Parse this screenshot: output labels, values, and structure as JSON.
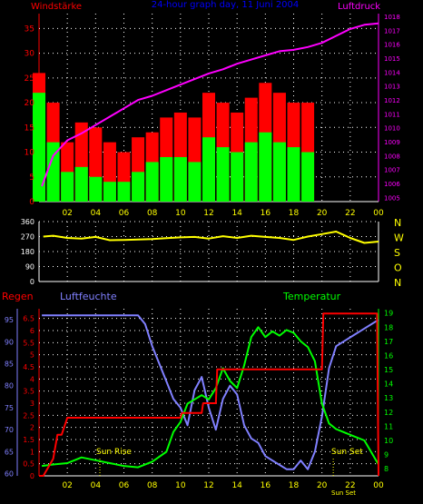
{
  "labels": {
    "wind_title": "Windstärke",
    "header": "24-hour graph day, 11 Juni 2004",
    "pressure_title": "Luftdruck",
    "rain_title": "Regen",
    "humidity_title": "Luftfeuchte",
    "temp_title": "Temperatur",
    "sunrise": "Sun Rise",
    "sunset": "Sun Set",
    "sunset_sub": "Sun Set"
  },
  "colors": {
    "wind_gust": "#ff0000",
    "wind_avg": "#00ff00",
    "pressure": "#ff00ff",
    "direction": "#ffff00",
    "rain": "#ff0000",
    "humidity": "#8080ff",
    "temperature": "#00ff00",
    "grid": "#ffffff",
    "axis_red": "#ff0000",
    "axis_magenta": "#ff00ff",
    "axis_yellow": "#ffff00",
    "axis_blue": "#8080ff",
    "axis_green": "#00ff00"
  },
  "chart_data": [
    {
      "type": "line",
      "id": "wind_pressure",
      "title": "24-hour graph day, 11 Juni 2004",
      "x_ticks": [
        "02",
        "04",
        "06",
        "08",
        "10",
        "12",
        "14",
        "16",
        "18",
        "20",
        "22",
        "00"
      ],
      "xlim": [
        0,
        24
      ],
      "y_left_label": "Windstärke",
      "y_left_ticks": [
        "0",
        "5",
        "10",
        "15",
        "20",
        "25",
        "30",
        "35"
      ],
      "y_left_lim": [
        0,
        38
      ],
      "y_right_label": "Luftdruck",
      "y_right_ticks": [
        "1005",
        "1006",
        "1007",
        "1008",
        "1009",
        "1010",
        "1011",
        "1012",
        "1013",
        "1014",
        "1015",
        "1016",
        "1017",
        "1018"
      ],
      "y_right_lim": [
        1004.7,
        1018.2
      ],
      "grid": true,
      "series": [
        {
          "name": "Windstärke (gust)",
          "axis": "left",
          "style": "bars",
          "x": [
            0,
            1,
            2,
            3,
            4,
            5,
            6,
            7,
            8,
            9,
            10,
            11,
            12,
            13,
            14,
            15,
            16,
            17,
            18,
            19,
            20,
            21,
            22,
            23,
            24
          ],
          "y": [
            26,
            20,
            12,
            16,
            15,
            12,
            10,
            13,
            14,
            17,
            18,
            17,
            22,
            20,
            18,
            21,
            24,
            22,
            20,
            20,
            0,
            0,
            0,
            0,
            0
          ]
        },
        {
          "name": "Windstärke (avg)",
          "axis": "left",
          "style": "bars",
          "x": [
            0,
            1,
            2,
            3,
            4,
            5,
            6,
            7,
            8,
            9,
            10,
            11,
            12,
            13,
            14,
            15,
            16,
            17,
            18,
            19,
            20,
            21,
            22,
            23,
            24
          ],
          "y": [
            22,
            12,
            6,
            7,
            5,
            4,
            4,
            6,
            8,
            9,
            9,
            8,
            13,
            11,
            10,
            12,
            14,
            12,
            11,
            10,
            0,
            0,
            0,
            0,
            0
          ]
        },
        {
          "name": "Luftdruck",
          "axis": "right",
          "x": [
            0.2,
            1,
            2,
            3,
            4,
            5,
            6,
            7,
            8,
            9,
            10,
            11,
            12,
            13,
            14,
            15,
            16,
            17,
            18,
            19,
            20,
            21,
            22,
            23,
            24
          ],
          "y": [
            1005.8,
            1008.0,
            1009.1,
            1009.6,
            1010.2,
            1010.8,
            1011.4,
            1012.0,
            1012.3,
            1012.7,
            1013.1,
            1013.5,
            1013.9,
            1014.2,
            1014.6,
            1014.9,
            1015.2,
            1015.5,
            1015.6,
            1015.8,
            1016.1,
            1016.6,
            1017.1,
            1017.4,
            1017.5
          ]
        }
      ]
    },
    {
      "type": "line",
      "id": "wind_direction",
      "xlim": [
        0,
        24
      ],
      "y_left_ticks": [
        "0",
        "90",
        "180",
        "270",
        "360"
      ],
      "y_left_lim": [
        0,
        360
      ],
      "y_right_labels": [
        "N",
        "W",
        "S",
        "O",
        "N"
      ],
      "grid": true,
      "series": [
        {
          "name": "Windrichtung",
          "axis": "left",
          "x": [
            0.3,
            1,
            2,
            3,
            4,
            5,
            6,
            7,
            8,
            9,
            10,
            11,
            12,
            13,
            14,
            15,
            16,
            17,
            18,
            19,
            20,
            21,
            22,
            23,
            24
          ],
          "y": [
            270,
            275,
            262,
            258,
            268,
            248,
            250,
            252,
            255,
            260,
            265,
            268,
            258,
            272,
            262,
            275,
            268,
            262,
            250,
            270,
            285,
            300,
            262,
            232,
            240
          ]
        }
      ]
    },
    {
      "type": "line",
      "id": "rain_humidity_temperature",
      "x_ticks": [
        "02",
        "04",
        "06",
        "08",
        "10",
        "12",
        "14",
        "16",
        "18",
        "20",
        "22",
        "00"
      ],
      "xlim": [
        0,
        24
      ],
      "y_rain_label": "Regen",
      "y_rain_ticks": [
        "0",
        "0.5",
        "1",
        "1.5",
        "2",
        "2.5",
        "3",
        "3.5",
        "4",
        "4.5",
        "5",
        "5.5",
        "6",
        "6.5"
      ],
      "y_rain_lim": [
        0,
        6.9
      ],
      "y_humidity_label": "Luftfeuchte",
      "y_humidity_ticks": [
        "60",
        "65",
        "70",
        "75",
        "80",
        "85",
        "90",
        "95"
      ],
      "y_humidity_lim": [
        59.5,
        97.5
      ],
      "y_temp_label": "Temperatur",
      "y_temp_ticks": [
        "8",
        "9",
        "10",
        "11",
        "12",
        "13",
        "14",
        "15",
        "16",
        "17",
        "18",
        "19"
      ],
      "y_temp_lim": [
        7.5,
        19.3
      ],
      "annotations": [
        "Sun Rise",
        "Sun Set",
        "Sun Set"
      ],
      "grid": true,
      "series": [
        {
          "name": "Regen",
          "axis": "rain",
          "x": [
            0,
            0.3,
            1.0,
            1.3,
            1.6,
            2.0,
            5.0,
            8.0,
            10.0,
            10.1,
            11.5,
            11.6,
            12.5,
            12.6,
            13.5,
            16.0,
            19.0,
            20.0,
            20.1,
            22.0,
            23.9,
            24.0
          ],
          "y": [
            0,
            0,
            0.7,
            1.7,
            1.7,
            2.4,
            2.4,
            2.4,
            2.4,
            2.6,
            2.6,
            3.0,
            3.0,
            4.4,
            4.4,
            4.4,
            4.4,
            4.4,
            6.7,
            6.7,
            6.7,
            0
          ]
        },
        {
          "name": "Luftfeuchte",
          "axis": "humidity",
          "x": [
            0.2,
            1,
            2,
            3,
            4,
            5,
            6,
            7,
            7.5,
            8,
            8.5,
            9,
            9.5,
            10,
            10.5,
            11,
            11.5,
            12,
            12.5,
            13,
            13.5,
            14,
            14.5,
            15,
            15.5,
            16,
            16.5,
            17,
            17.5,
            18,
            18.5,
            19,
            19.5,
            20,
            20.5,
            21,
            22,
            23,
            24
          ],
          "y": [
            96,
            96,
            96,
            96,
            96,
            96,
            96,
            96,
            94,
            89,
            85,
            81,
            77,
            75,
            71,
            79,
            82,
            75,
            70,
            77,
            80,
            78,
            71,
            68,
            67,
            64,
            63,
            62,
            61,
            61,
            63,
            61,
            65,
            73,
            84,
            89,
            91,
            93,
            95
          ]
        },
        {
          "name": "Temperatur",
          "axis": "temp",
          "x": [
            0.2,
            1,
            2,
            3,
            4,
            5,
            6,
            7,
            8,
            9,
            9.5,
            10,
            10.5,
            11,
            11.5,
            12,
            12.5,
            13,
            13.5,
            14,
            14.5,
            15,
            15.5,
            16,
            16.5,
            17,
            17.5,
            18,
            18.5,
            19,
            19.5,
            20,
            20.5,
            21,
            22,
            23,
            24
          ],
          "y": [
            8.2,
            8.3,
            8.4,
            8.8,
            8.6,
            8.4,
            8.2,
            8.1,
            8.5,
            9.2,
            10.6,
            11.3,
            12.6,
            12.9,
            13.2,
            12.9,
            13.7,
            15.1,
            14.2,
            13.7,
            15.3,
            17.3,
            18.0,
            17.3,
            17.7,
            17.4,
            17.8,
            17.6,
            17.0,
            16.6,
            15.6,
            12.6,
            11.2,
            10.8,
            10.4,
            10.0,
            8.3
          ]
        }
      ]
    }
  ]
}
